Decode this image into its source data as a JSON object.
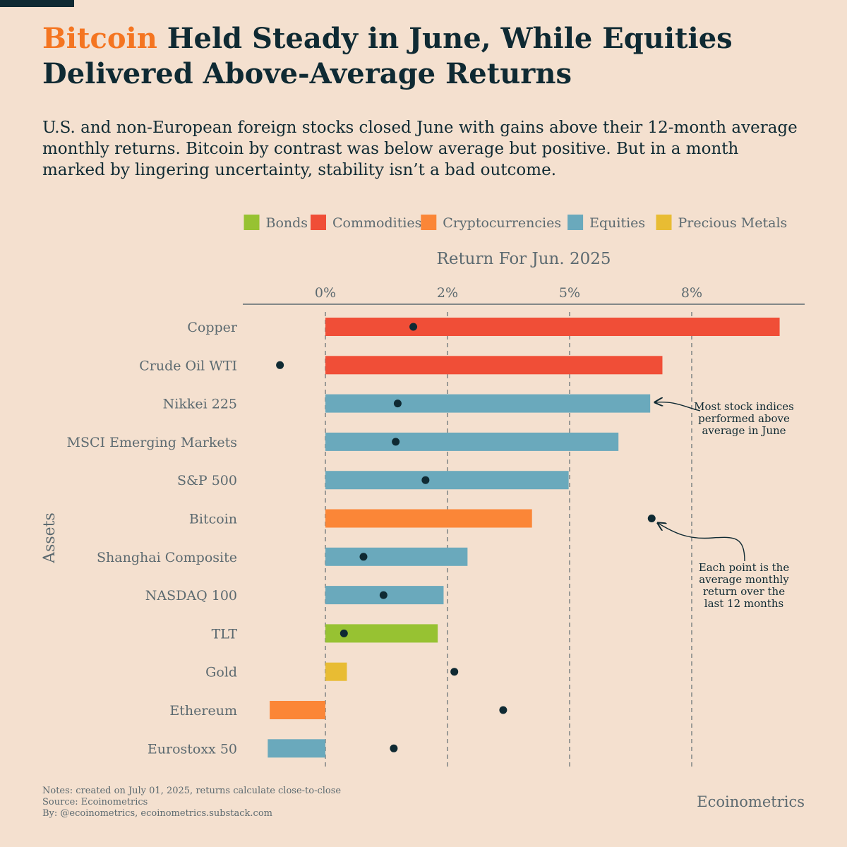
{
  "header": {
    "title_accent": "Bitcoin",
    "title_rest": " Held Steady in June, While Equities Delivered Above-Average Returns",
    "subtitle": "U.S. and non-European foreign stocks closed June with gains above their 12-month average monthly returns. Bitcoin by contrast was below average but positive. But in a month marked by lingering uncertainty, stability isn’t a bad outcome."
  },
  "chart_data": {
    "type": "bar",
    "orientation": "horizontal",
    "title": "Return For Jun. 2025",
    "xlabel": "Return For Jun. 2025",
    "ylabel": "Assets",
    "xlim": [
      -1.7,
      9.8
    ],
    "xticks": [
      0,
      2.5,
      5,
      7.5
    ],
    "xtick_labels": [
      "0%",
      "2%",
      "5%",
      "8%"
    ],
    "grid": "vertical dashed at ticks",
    "legend_position": "top-right",
    "legend": [
      {
        "name": "Bonds",
        "color": "#97c232"
      },
      {
        "name": "Commodities",
        "color": "#f04e37"
      },
      {
        "name": "Cryptocurrencies",
        "color": "#fb8637"
      },
      {
        "name": "Equities",
        "color": "#6aa9bc"
      },
      {
        "name": "Precious Metals",
        "color": "#e8bc33"
      }
    ],
    "categories": [
      "Copper",
      "Crude Oil WTI",
      "Nikkei 225",
      "MSCI Emerging Markets",
      "S&P 500",
      "Bitcoin",
      "Shanghai Composite",
      "NASDAQ 100",
      "TLT",
      "Gold",
      "Ethereum",
      "Eurostoxx 50"
    ],
    "groups": [
      "Commodities",
      "Commodities",
      "Equities",
      "Equities",
      "Equities",
      "Cryptocurrencies",
      "Equities",
      "Equities",
      "Bonds",
      "Precious Metals",
      "Cryptocurrencies",
      "Equities"
    ],
    "values": [
      9.3,
      6.9,
      6.65,
      6.0,
      4.98,
      4.23,
      2.91,
      2.42,
      2.3,
      0.44,
      -1.14,
      -1.18
    ],
    "average_monthly_return_12m": [
      1.8,
      -0.93,
      1.48,
      1.44,
      2.05,
      6.68,
      0.78,
      1.19,
      0.38,
      2.64,
      3.64,
      1.4
    ],
    "annotations": [
      {
        "text": "Most stock indices performed above average in June",
        "target": "Nikkei 225"
      },
      {
        "text": "Each point is the average monthly return over the last 12 months",
        "target": "Bitcoin"
      }
    ]
  },
  "annotation_lines": {
    "stocks": [
      "Most stock indices",
      "performed above",
      "average in June"
    ],
    "points": [
      "Each point is the",
      "average monthly",
      "return over the",
      "last 12 months"
    ]
  },
  "colors": {
    "background": "#f4e0cf",
    "text_dark": "#0f2a33",
    "text_muted": "#5c6a70",
    "accent": "#f47521"
  },
  "footer": {
    "notes": "Notes: created on July 01, 2025, returns calculate close-to-close",
    "source": "Source: Ecoinometrics",
    "by": "By: @ecoinometrics, ecoinometrics.substack.com",
    "brand": "Ecoinometrics"
  }
}
